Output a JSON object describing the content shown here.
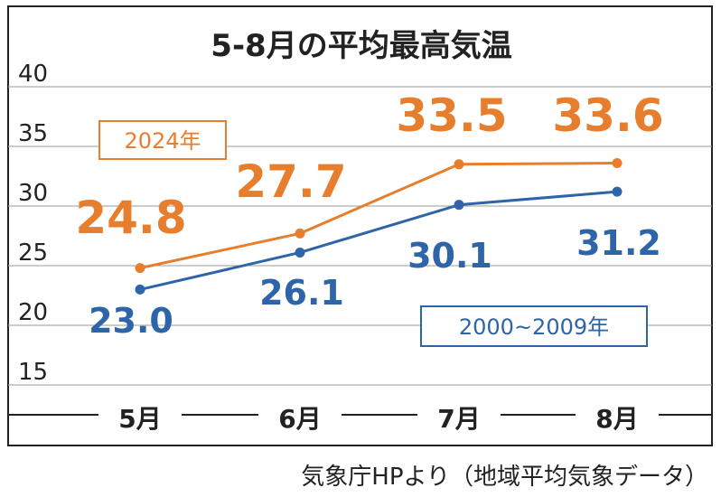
{
  "chart_data": {
    "type": "line",
    "title": "5-8月の平均最高気温",
    "categories": [
      "5月",
      "6月",
      "7月",
      "8月"
    ],
    "ylim": [
      15,
      40
    ],
    "yticks": [
      15,
      20,
      25,
      30,
      35,
      40
    ],
    "grid": true,
    "series": [
      {
        "name": "2024年",
        "color": "#e77e2e",
        "values": [
          24.8,
          27.7,
          33.5,
          33.6
        ],
        "labels": [
          "24.8",
          "27.7",
          "33.5",
          "33.6"
        ]
      },
      {
        "name": "2000~2009年",
        "color": "#2e64a8",
        "values": [
          23.0,
          26.1,
          30.1,
          31.2
        ],
        "labels": [
          "23.0",
          "26.1",
          "30.1",
          "31.2"
        ]
      }
    ]
  },
  "source_text": "気象庁HPより（地域平均気象データ）"
}
